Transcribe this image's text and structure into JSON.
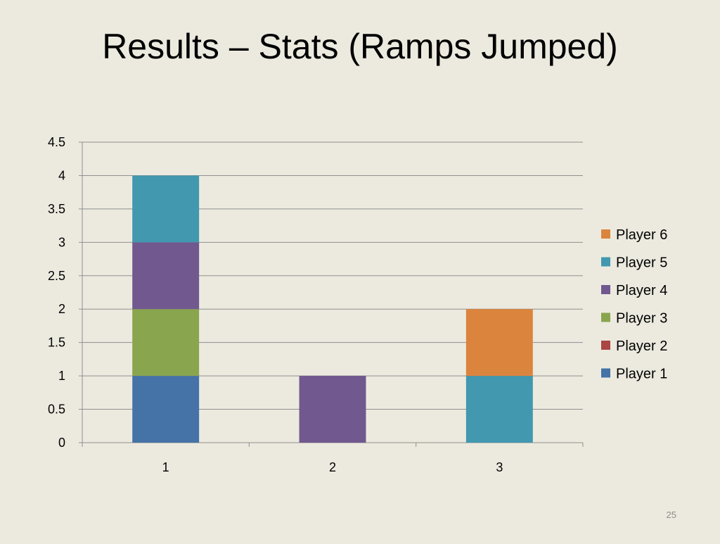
{
  "slide": {
    "title": "Results – Stats (Ramps Jumped)",
    "page_number": "25"
  },
  "chart_data": {
    "type": "bar",
    "stacked": true,
    "title": "",
    "xlabel": "",
    "ylabel": "",
    "categories": [
      "1",
      "2",
      "3"
    ],
    "ylim": [
      0,
      4.5
    ],
    "yticks": [
      0,
      0.5,
      1,
      1.5,
      2,
      2.5,
      3,
      3.5,
      4,
      4.5
    ],
    "ytick_labels": [
      "0",
      "0.5",
      "1",
      "1.5",
      "2",
      "2.5",
      "3",
      "3.5",
      "4",
      "4.5"
    ],
    "grid": true,
    "legend_position": "right",
    "series": [
      {
        "name": "Player 1",
        "color": "#4572A7",
        "values": [
          1,
          0,
          0
        ]
      },
      {
        "name": "Player 2",
        "color": "#AA4643",
        "values": [
          0,
          0,
          0
        ]
      },
      {
        "name": "Player 3",
        "color": "#89A54E",
        "values": [
          1,
          0,
          0
        ]
      },
      {
        "name": "Player 4",
        "color": "#71588F",
        "values": [
          1,
          1,
          0
        ]
      },
      {
        "name": "Player 5",
        "color": "#4198AF",
        "values": [
          1,
          0,
          1
        ]
      },
      {
        "name": "Player 6",
        "color": "#DB843D",
        "values": [
          0,
          0,
          1
        ]
      }
    ]
  }
}
